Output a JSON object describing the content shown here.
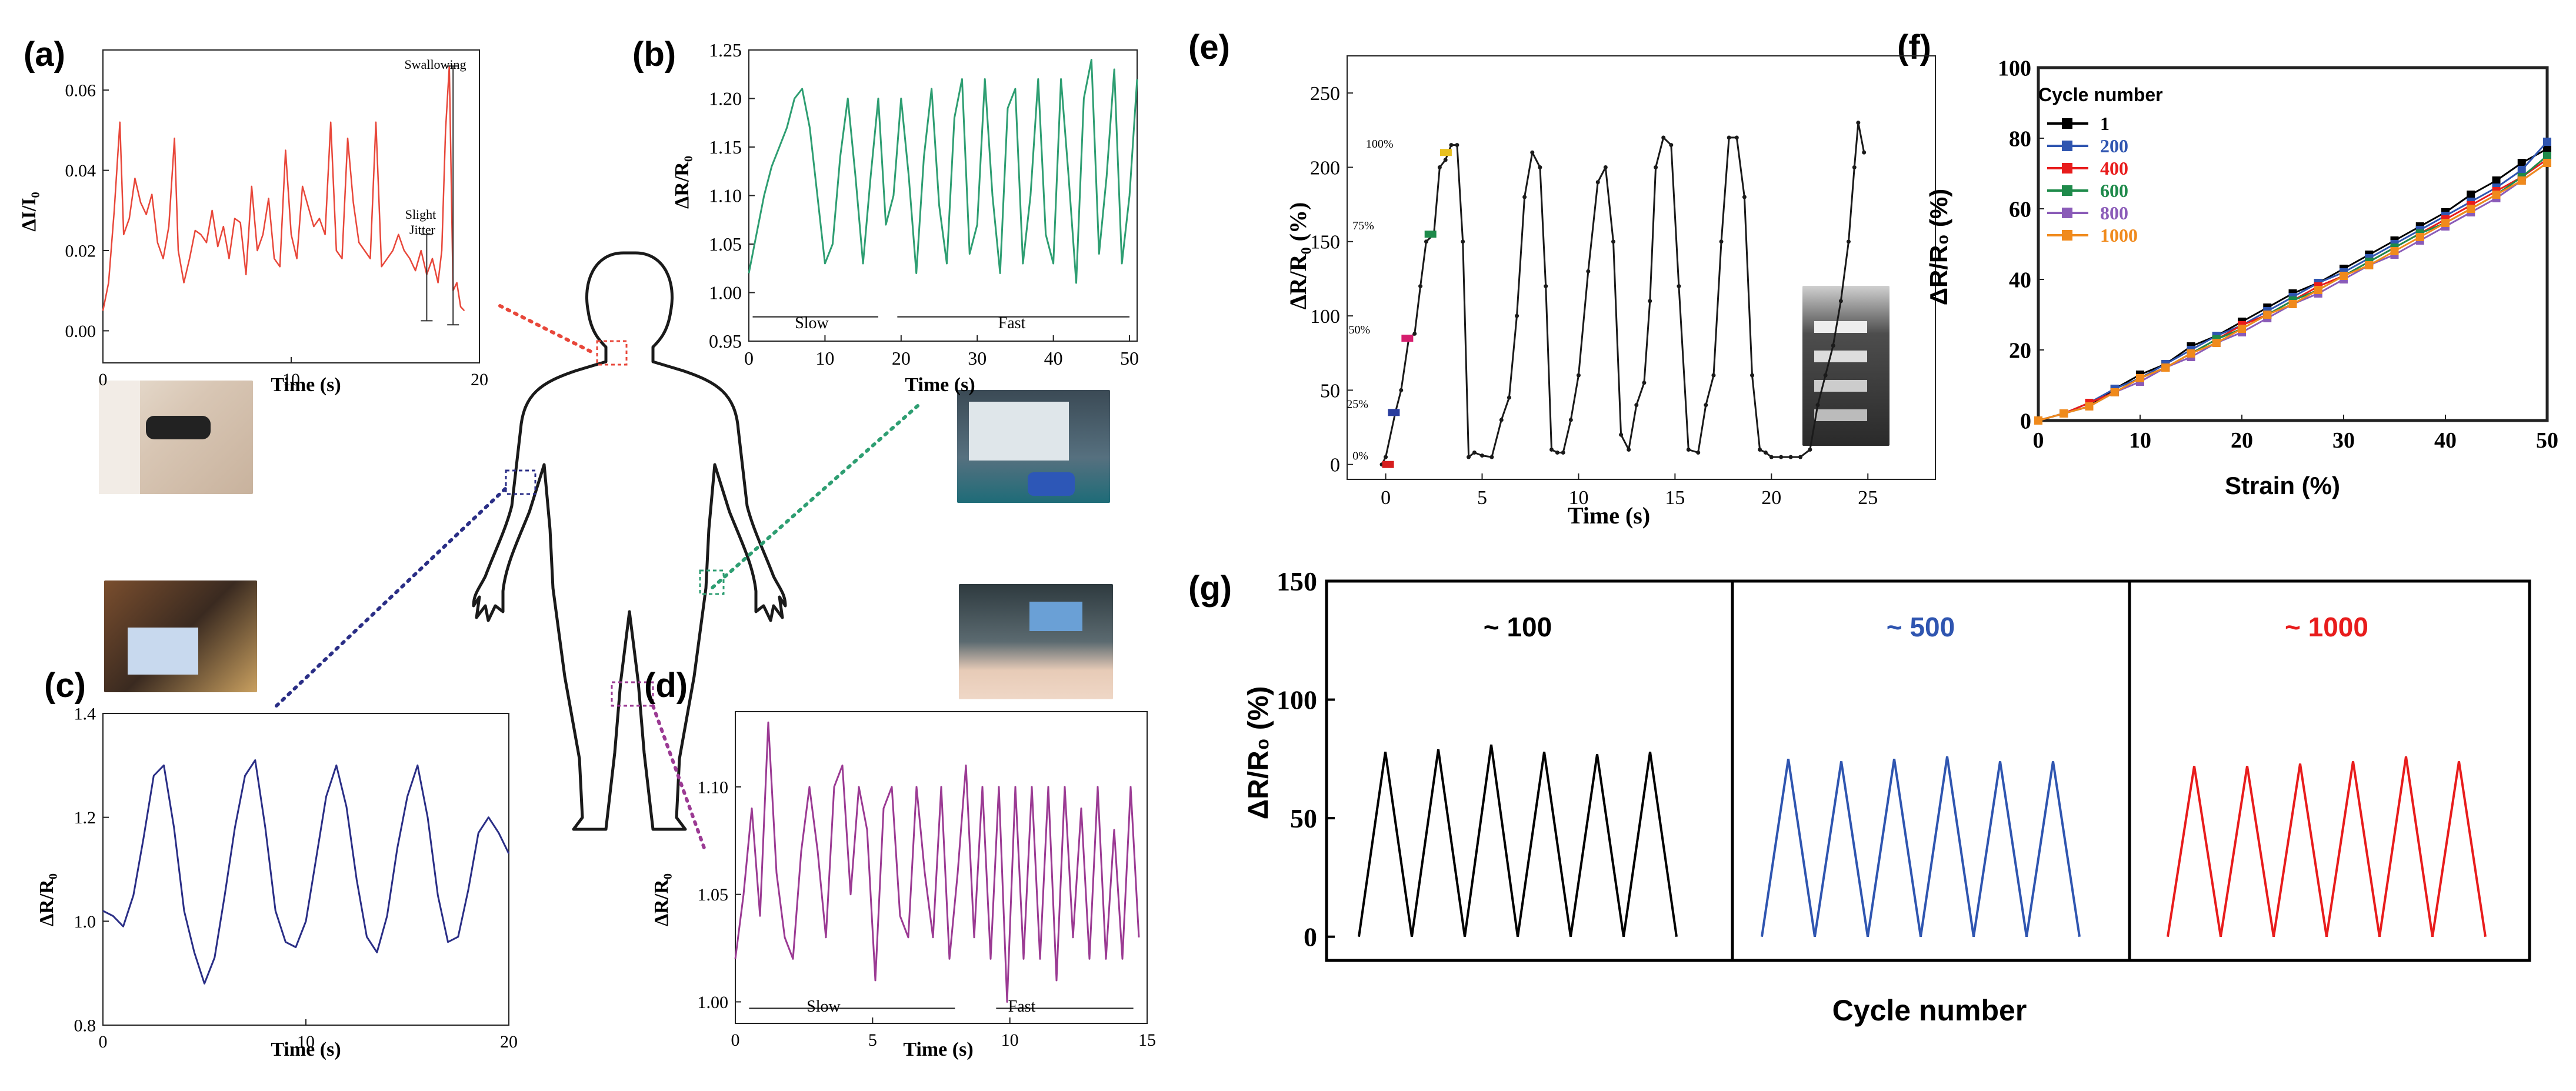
{
  "panels": {
    "a": {
      "letter": "(a)",
      "ylabel": "ΔI/I₀",
      "xlabel": "Time (s)",
      "ann_swallow": "Swallowing",
      "ann_jitter_1": "Slight",
      "ann_jitter_2": "Jitter"
    },
    "b": {
      "letter": "(b)",
      "ylabel": "ΔR/R₀",
      "xlabel": "Time (s)",
      "ann_slow": "Slow",
      "ann_fast": "Fast"
    },
    "c": {
      "letter": "(c)",
      "ylabel": "ΔR/R₀",
      "xlabel": "Time (s)"
    },
    "d": {
      "letter": "(d)",
      "ylabel": "ΔR/R₀",
      "xlabel": "Time (s)",
      "ann_slow": "Slow",
      "ann_fast": "Fast"
    },
    "e": {
      "letter": "(e)",
      "ylabel": "ΔR/R₀ (%)",
      "xlabel": "Time (s)",
      "strain_labels": [
        "0%",
        "25%",
        "50%",
        "75%",
        "100%"
      ]
    },
    "f": {
      "letter": "(f)",
      "ylabel": "ΔR/R₀ (%)",
      "xlabel": "Strain (%)",
      "legend_title": "Cycle number"
    },
    "g": {
      "letter": "(g)",
      "ylabel": "ΔR/R₀ (%)",
      "xlabel": "Cycle number",
      "sub_titles": [
        "~ 100",
        "~ 500",
        "~ 1000"
      ]
    }
  },
  "colors": {
    "a": "#e8473a",
    "b": "#2e9e72",
    "c": "#2a2e86",
    "d": "#9b3a93",
    "e": "#1a1a1a",
    "g": [
      "#000000",
      "#2f55b0",
      "#e81c1c"
    ]
  },
  "chart_data": [
    {
      "id": "a",
      "type": "line",
      "xlabel": "Time (s)",
      "ylabel": "ΔI/I₀",
      "xlim": [
        0,
        20
      ],
      "ylim": [
        -0.008,
        0.07
      ],
      "xticks": [
        0,
        10,
        20
      ],
      "yticks": [
        0.0,
        0.02,
        0.04,
        0.06
      ],
      "ytick_labels": [
        "0.00",
        "0.02",
        "0.04",
        "0.06"
      ],
      "series": [
        {
          "x": [
            0,
            0.3,
            0.6,
            0.9,
            1.1,
            1.4,
            1.7,
            2,
            2.3,
            2.6,
            2.9,
            3.2,
            3.5,
            3.8,
            4,
            4.3,
            4.6,
            4.9,
            5.2,
            5.5,
            5.8,
            6.1,
            6.4,
            6.7,
            7,
            7.3,
            7.6,
            7.9,
            8.2,
            8.5,
            8.8,
            9.1,
            9.4,
            9.7,
            10,
            10.3,
            10.6,
            10.9,
            11.2,
            11.5,
            11.8,
            12.1,
            12.4,
            12.7,
            13,
            13.3,
            13.6,
            13.9,
            14.2,
            14.5,
            14.8,
            15.1,
            15.4,
            15.7,
            16,
            16.3,
            16.6,
            16.9,
            17.2,
            17.5,
            17.8,
            18,
            18.2,
            18.4,
            18.6,
            18.8,
            19,
            19.2
          ],
          "y": [
            0.005,
            0.012,
            0.03,
            0.052,
            0.024,
            0.028,
            0.038,
            0.032,
            0.029,
            0.034,
            0.022,
            0.018,
            0.026,
            0.048,
            0.02,
            0.012,
            0.018,
            0.025,
            0.024,
            0.022,
            0.03,
            0.021,
            0.026,
            0.018,
            0.028,
            0.027,
            0.014,
            0.036,
            0.02,
            0.024,
            0.033,
            0.018,
            0.016,
            0.045,
            0.024,
            0.018,
            0.036,
            0.031,
            0.026,
            0.028,
            0.024,
            0.052,
            0.02,
            0.018,
            0.048,
            0.032,
            0.022,
            0.02,
            0.018,
            0.052,
            0.016,
            0.018,
            0.02,
            0.024,
            0.02,
            0.018,
            0.015,
            0.02,
            0.014,
            0.018,
            0.012,
            0.02,
            0.05,
            0.066,
            0.01,
            0.012,
            0.006,
            0.005
          ]
        }
      ]
    },
    {
      "id": "b",
      "type": "line",
      "xlabel": "Time (s)",
      "ylabel": "ΔR/R₀",
      "xlim": [
        0,
        51
      ],
      "ylim": [
        0.95,
        1.25
      ],
      "xticks": [
        0,
        10,
        20,
        30,
        40,
        50
      ],
      "yticks": [
        0.95,
        1.0,
        1.05,
        1.1,
        1.15,
        1.2,
        1.25
      ],
      "ytick_labels": [
        "0.95",
        "1.00",
        "1.05",
        "1.10",
        "1.15",
        "1.20",
        "1.25"
      ],
      "series": [
        {
          "x": [
            0,
            1,
            2,
            3,
            4,
            5,
            6,
            7,
            8,
            9,
            10,
            11,
            12,
            13,
            14,
            15,
            16,
            17,
            18,
            19,
            20,
            21,
            22,
            23,
            24,
            25,
            26,
            27,
            28,
            29,
            30,
            31,
            32,
            33,
            34,
            35,
            36,
            37,
            38,
            39,
            40,
            41,
            42,
            43,
            44,
            45,
            46,
            47,
            48,
            49,
            50,
            51
          ],
          "y": [
            1.02,
            1.06,
            1.1,
            1.13,
            1.15,
            1.17,
            1.2,
            1.21,
            1.17,
            1.1,
            1.03,
            1.05,
            1.14,
            1.2,
            1.12,
            1.03,
            1.12,
            1.2,
            1.07,
            1.1,
            1.2,
            1.12,
            1.02,
            1.14,
            1.21,
            1.09,
            1.03,
            1.18,
            1.22,
            1.04,
            1.07,
            1.22,
            1.1,
            1.02,
            1.19,
            1.21,
            1.03,
            1.1,
            1.22,
            1.06,
            1.03,
            1.22,
            1.12,
            1.01,
            1.2,
            1.24,
            1.04,
            1.12,
            1.23,
            1.03,
            1.1,
            1.22
          ]
        }
      ]
    },
    {
      "id": "c",
      "type": "line",
      "xlabel": "Time (s)",
      "ylabel": "ΔR/R₀",
      "xlim": [
        0,
        20
      ],
      "ylim": [
        0.8,
        1.4
      ],
      "xticks": [
        0,
        10,
        20
      ],
      "yticks": [
        0.8,
        1.0,
        1.2,
        1.4
      ],
      "ytick_labels": [
        "0.8",
        "1.0",
        "1.2",
        "1.4"
      ],
      "series": [
        {
          "x": [
            0,
            0.5,
            1,
            1.5,
            2,
            2.5,
            3,
            3.5,
            4,
            4.5,
            5,
            5.5,
            6,
            6.5,
            7,
            7.5,
            8,
            8.5,
            9,
            9.5,
            10,
            10.5,
            11,
            11.5,
            12,
            12.5,
            13,
            13.5,
            14,
            14.5,
            15,
            15.5,
            16,
            16.5,
            17,
            17.5,
            18,
            18.5,
            19,
            19.5,
            20
          ],
          "y": [
            1.02,
            1.01,
            0.99,
            1.05,
            1.16,
            1.28,
            1.3,
            1.18,
            1.02,
            0.94,
            0.88,
            0.93,
            1.05,
            1.18,
            1.28,
            1.31,
            1.18,
            1.02,
            0.96,
            0.95,
            1.0,
            1.12,
            1.24,
            1.3,
            1.22,
            1.08,
            0.97,
            0.94,
            1.01,
            1.14,
            1.24,
            1.3,
            1.2,
            1.05,
            0.96,
            0.97,
            1.06,
            1.17,
            1.2,
            1.17,
            1.13
          ]
        }
      ]
    },
    {
      "id": "d",
      "type": "line",
      "xlabel": "Time (s)",
      "ylabel": "ΔR/R₀",
      "xlim": [
        0,
        15
      ],
      "ylim": [
        0.99,
        1.135
      ],
      "xticks": [
        0,
        5,
        10,
        15
      ],
      "yticks": [
        1.0,
        1.05,
        1.1
      ],
      "ytick_labels": [
        "1.00",
        "1.05",
        "1.10"
      ],
      "series": [
        {
          "x": [
            0,
            0.3,
            0.6,
            0.9,
            1.2,
            1.5,
            1.8,
            2.1,
            2.4,
            2.7,
            3,
            3.3,
            3.6,
            3.9,
            4.2,
            4.5,
            4.8,
            5.1,
            5.4,
            5.7,
            6,
            6.3,
            6.6,
            6.9,
            7.2,
            7.5,
            7.8,
            8.1,
            8.4,
            8.7,
            9,
            9.3,
            9.6,
            9.9,
            10.2,
            10.5,
            10.8,
            11.1,
            11.4,
            11.7,
            12,
            12.3,
            12.6,
            12.9,
            13.2,
            13.5,
            13.8,
            14.1,
            14.4,
            14.7
          ],
          "y": [
            1.02,
            1.05,
            1.09,
            1.04,
            1.13,
            1.06,
            1.03,
            1.02,
            1.07,
            1.1,
            1.07,
            1.03,
            1.1,
            1.11,
            1.05,
            1.1,
            1.08,
            1.01,
            1.09,
            1.1,
            1.04,
            1.03,
            1.1,
            1.06,
            1.03,
            1.1,
            1.02,
            1.06,
            1.11,
            1.03,
            1.1,
            1.02,
            1.1,
            1.0,
            1.1,
            1.02,
            1.1,
            1.02,
            1.1,
            1.01,
            1.1,
            1.03,
            1.09,
            1.02,
            1.1,
            1.02,
            1.08,
            1.02,
            1.1,
            1.03
          ]
        }
      ]
    },
    {
      "id": "e",
      "type": "line",
      "xlabel": "Time (s)",
      "ylabel": "ΔR/R₀ (%)",
      "xlim": [
        -2,
        28.5
      ],
      "ylim": [
        -10,
        275
      ],
      "xticks": [
        0,
        5,
        10,
        15,
        20,
        25
      ],
      "yticks": [
        0,
        50,
        100,
        150,
        200,
        250
      ],
      "series": [
        {
          "x": [
            -0.2,
            0,
            0.5,
            0.8,
            1.2,
            1.5,
            1.8,
            2.1,
            2.5,
            2.8,
            3.1,
            3.4,
            3.7,
            4.0,
            4.3,
            4.6,
            5.0,
            5.5,
            6,
            6.4,
            6.8,
            7.2,
            7.6,
            8,
            8.3,
            8.6,
            8.9,
            9.2,
            9.6,
            10,
            10.5,
            11,
            11.4,
            11.8,
            12.2,
            12.6,
            13,
            13.4,
            13.7,
            14.0,
            14.4,
            14.8,
            15.2,
            15.7,
            16.2,
            16.6,
            17,
            17.4,
            17.8,
            18.2,
            18.6,
            19,
            19.4,
            19.7,
            20,
            20.5,
            21,
            21.5,
            22,
            22.4,
            22.8,
            23.2,
            23.6,
            24,
            24.3,
            24.5,
            24.8
          ],
          "y": [
            0,
            5,
            35,
            50,
            85,
            88,
            120,
            150,
            155,
            200,
            205,
            215,
            215,
            150,
            5,
            8,
            6,
            5,
            30,
            45,
            100,
            180,
            210,
            200,
            120,
            10,
            8,
            8,
            30,
            60,
            130,
            190,
            200,
            150,
            20,
            10,
            40,
            55,
            110,
            200,
            220,
            215,
            120,
            10,
            8,
            40,
            60,
            150,
            220,
            220,
            180,
            60,
            10,
            8,
            5,
            5,
            5,
            5,
            10,
            40,
            60,
            80,
            110,
            150,
            200,
            230,
            210
          ]
        }
      ]
    },
    {
      "id": "f",
      "type": "line",
      "xlabel": "Strain (%)",
      "ylabel": "ΔR/R₀ (%)",
      "xlim": [
        0,
        50
      ],
      "ylim": [
        0,
        100
      ],
      "xticks": [
        0,
        10,
        20,
        30,
        40,
        50
      ],
      "yticks": [
        0,
        20,
        40,
        60,
        80,
        100
      ],
      "series": [
        {
          "name": "1",
          "color": "#000000",
          "x": [
            0,
            2.5,
            5,
            7.5,
            10,
            12.5,
            15,
            17.5,
            20,
            22.5,
            25,
            27.5,
            30,
            32.5,
            35,
            37.5,
            40,
            42.5,
            45,
            47.5,
            50
          ],
          "y": [
            0,
            2,
            4,
            9,
            13,
            16,
            21,
            24,
            28,
            32,
            36,
            39,
            43,
            47,
            51,
            55,
            59,
            64,
            68,
            73,
            77
          ]
        },
        {
          "name": "200",
          "color": "#2f55b0",
          "x": [
            0,
            2.5,
            5,
            7.5,
            10,
            12.5,
            15,
            17.5,
            20,
            22.5,
            25,
            27.5,
            30,
            32.5,
            35,
            37.5,
            40,
            42.5,
            45,
            47.5,
            50
          ],
          "y": [
            0,
            2,
            5,
            9,
            12,
            16,
            20,
            24,
            27,
            31,
            35,
            39,
            42,
            46,
            50,
            54,
            58,
            62,
            66,
            71,
            79
          ]
        },
        {
          "name": "400",
          "color": "#e81c1c",
          "x": [
            0,
            2.5,
            5,
            7.5,
            10,
            12.5,
            15,
            17.5,
            20,
            22.5,
            25,
            27.5,
            30,
            32.5,
            35,
            37.5,
            40,
            42.5,
            45,
            47.5,
            50
          ],
          "y": [
            0,
            2,
            5,
            8,
            12,
            15,
            19,
            23,
            27,
            30,
            34,
            38,
            41,
            45,
            49,
            53,
            57,
            61,
            65,
            69,
            74
          ]
        },
        {
          "name": "600",
          "color": "#1e8a4a",
          "x": [
            0,
            2.5,
            5,
            7.5,
            10,
            12.5,
            15,
            17.5,
            20,
            22.5,
            25,
            27.5,
            30,
            32.5,
            35,
            37.5,
            40,
            42.5,
            45,
            47.5,
            50
          ],
          "y": [
            0,
            2,
            4,
            8,
            12,
            15,
            19,
            23,
            26,
            30,
            34,
            37,
            41,
            45,
            49,
            53,
            56,
            60,
            64,
            69,
            75
          ]
        },
        {
          "name": "800",
          "color": "#8a5bb8",
          "x": [
            0,
            2.5,
            5,
            7.5,
            10,
            12.5,
            15,
            17.5,
            20,
            22.5,
            25,
            27.5,
            30,
            32.5,
            35,
            37.5,
            40,
            42.5,
            45,
            47.5,
            50
          ],
          "y": [
            0,
            2,
            4,
            8,
            11,
            15,
            18,
            22,
            25,
            29,
            33,
            36,
            40,
            44,
            47,
            51,
            55,
            59,
            63,
            68,
            73
          ]
        },
        {
          "name": "1000",
          "color": "#f08a1c",
          "x": [
            0,
            2.5,
            5,
            7.5,
            10,
            12.5,
            15,
            17.5,
            20,
            22.5,
            25,
            27.5,
            30,
            32.5,
            35,
            37.5,
            40,
            42.5,
            45,
            47.5,
            50
          ],
          "y": [
            0,
            2,
            4,
            8,
            12,
            15,
            19,
            22,
            26,
            30,
            33,
            37,
            41,
            44,
            48,
            52,
            56,
            60,
            64,
            68,
            73
          ]
        }
      ]
    },
    {
      "id": "g",
      "type": "line",
      "xlabel": "Cycle number",
      "ylabel": "ΔR/R₀ (%)",
      "ylim": [
        -10,
        150
      ],
      "yticks": [
        0,
        50,
        100,
        150
      ],
      "series": [
        {
          "title": "~ 100",
          "color": "#000000",
          "peaks": [
            78,
            79,
            81,
            78,
            77,
            78
          ]
        },
        {
          "title": "~ 500",
          "color": "#2f55b0",
          "peaks": [
            75,
            74,
            75,
            76,
            74,
            74
          ]
        },
        {
          "title": "~ 1000",
          "color": "#e81c1c",
          "peaks": [
            72,
            72,
            73,
            74,
            76,
            74
          ]
        }
      ]
    }
  ]
}
